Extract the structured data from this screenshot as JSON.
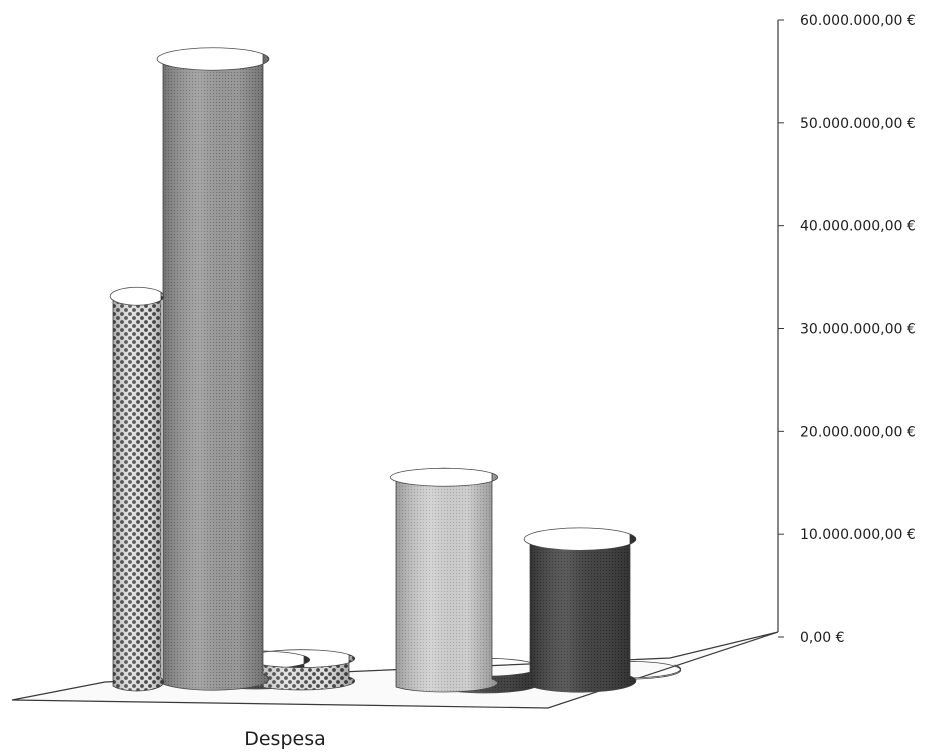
{
  "chart_data": {
    "type": "bar",
    "subtype": "3d-cylinder",
    "categories": [
      "Despesa"
    ],
    "series": [
      {
        "values": [
          35000000
        ],
        "fill": "pattern-checker"
      },
      {
        "values": [
          56000000
        ],
        "fill": "gray-dots"
      },
      {
        "values": [
          2500000
        ],
        "fill": "dark-gray"
      },
      {
        "values": [
          2700000
        ],
        "fill": "pattern-checker"
      },
      {
        "values": [
          19000000
        ],
        "fill": "light-gray"
      },
      {
        "values": [
          2200000
        ],
        "fill": "dark-gray"
      },
      {
        "values": [
          13500000
        ],
        "fill": "dark-gray"
      },
      {
        "values": [
          600000
        ],
        "fill": "pattern-light"
      }
    ],
    "y_ticks": [
      "0,00 €",
      "10.000.000,00 €",
      "20.000.000,00 €",
      "30.000.000,00 €",
      "40.000.000,00 €",
      "50.000.000,00 €",
      "60.000.000,00 €"
    ],
    "ylim": [
      0,
      60000000
    ],
    "xlabel": "",
    "ylabel": "",
    "title": "",
    "legend": "none",
    "grid": false,
    "colors": {
      "axis": "#3a3a3a",
      "dark": "#3f3f3f",
      "mid": "#8c8c8c",
      "light": "#c8c8c8",
      "pattern_dark": "#555555",
      "pattern_light": "#d9d9d9"
    }
  }
}
